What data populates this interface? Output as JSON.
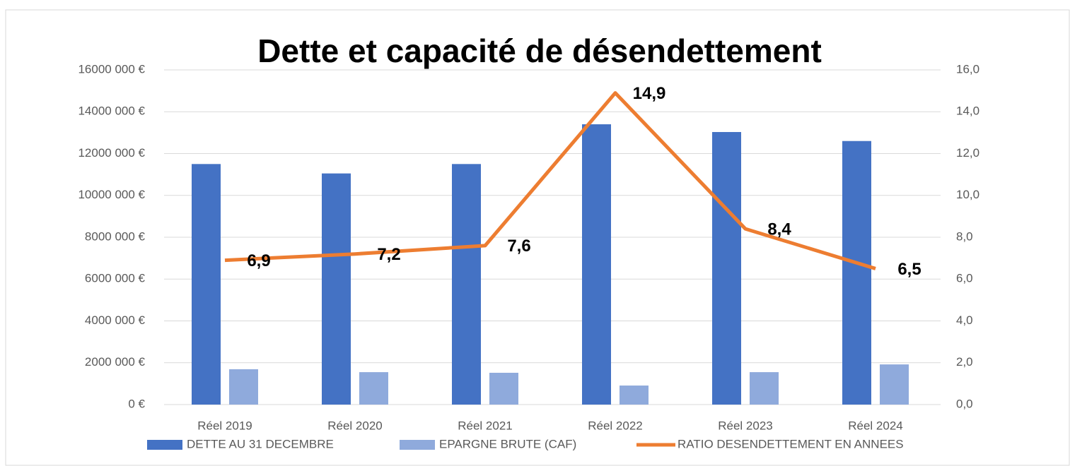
{
  "chart_data": {
    "type": "bar",
    "title": "Dette et capacité de désendettement",
    "categories": [
      "Réel 2019",
      "Réel 2020",
      "Réel 2021",
      "Réel 2022",
      "Réel 2023",
      "Réel 2024"
    ],
    "series": [
      {
        "name": "DETTE AU 31 DECEMBRE",
        "color": "#4472c4",
        "values": [
          11500000,
          11050000,
          11500000,
          13400000,
          13030000,
          12600000
        ]
      },
      {
        "name": "EPARGNE BRUTE (CAF)",
        "color": "#8faadc",
        "values": [
          1690000,
          1550000,
          1520000,
          910000,
          1550000,
          1920000
        ]
      },
      {
        "name": "RATIO DESENDETTEMENT EN ANNEES",
        "color": "#ed7d31",
        "type": "line",
        "axis": "y2",
        "values": [
          6.9,
          7.2,
          7.6,
          14.9,
          8.4,
          6.5
        ],
        "value_labels": [
          "6,9",
          "7,2",
          "7,6",
          "14,9",
          "8,4",
          "6,5"
        ]
      }
    ],
    "ylim": [
      0,
      16000000
    ],
    "yticks": [
      {
        "value": 0,
        "label": "0 €"
      },
      {
        "value": 2000000,
        "label": "2000 000 €"
      },
      {
        "value": 4000000,
        "label": "4000 000 €"
      },
      {
        "value": 6000000,
        "label": "6000 000 €"
      },
      {
        "value": 8000000,
        "label": "8000 000 €"
      },
      {
        "value": 10000000,
        "label": "10000 000 €"
      },
      {
        "value": 12000000,
        "label": "12000 000 €"
      },
      {
        "value": 14000000,
        "label": "14000 000 €"
      },
      {
        "value": 16000000,
        "label": "16000 000 €"
      }
    ],
    "y2lim": [
      0,
      16
    ],
    "y2ticks": [
      {
        "value": 0,
        "label": "0,0"
      },
      {
        "value": 2,
        "label": "2,0"
      },
      {
        "value": 4,
        "label": "4,0"
      },
      {
        "value": 6,
        "label": "6,0"
      },
      {
        "value": 8,
        "label": "8,0"
      },
      {
        "value": 10,
        "label": "10,0"
      },
      {
        "value": 12,
        "label": "12,0"
      },
      {
        "value": 14,
        "label": "14,0"
      },
      {
        "value": 16,
        "label": "16,0"
      }
    ],
    "grid": true,
    "legend": "bottom"
  }
}
